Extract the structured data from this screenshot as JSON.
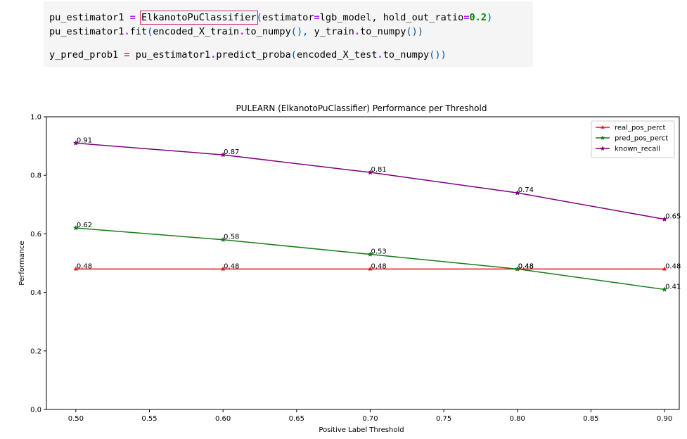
{
  "code": {
    "line1": {
      "var": "pu_estimator1",
      "eq": "=",
      "cls": "ElkanotoPuClassifier",
      "open": "(",
      "arg1": "estimator",
      "eq2": "=",
      "arg1v": "lgb_model,",
      "arg2": " hold_out_ratio",
      "eq3": "=",
      "num": "0.2",
      "close": ")"
    },
    "line2": {
      "var": "pu_estimator1",
      "dot": ".",
      "fn": "fit",
      "open": "(",
      "a": "encoded_X_train",
      "dot2": ".",
      "b": "to_numpy",
      "p1": "(),",
      "c": " y_train",
      "dot3": ".",
      "d": "to_numpy",
      "p2": "())"
    },
    "line3": {
      "var": "y_pred_prob1",
      "eq": "=",
      "a": "pu_estimator1",
      "dot": ".",
      "fn": "predict_proba",
      "open": "(",
      "b": "encoded_X_test",
      "dot2": ".",
      "c": "to_numpy",
      "close": "())"
    }
  },
  "chart_data": {
    "type": "line",
    "title": "PULEARN (ElkanotoPuClassifier) Performance per Threshold",
    "xlabel": "Positive Label Threshold",
    "ylabel": "Performance",
    "xlim": [
      0.48,
      0.91
    ],
    "ylim": [
      0.0,
      1.0
    ],
    "x": [
      0.5,
      0.6,
      0.7,
      0.8,
      0.9
    ],
    "xticks": [
      "0.50",
      "0.55",
      "0.60",
      "0.65",
      "0.70",
      "0.75",
      "0.80",
      "0.85",
      "0.90"
    ],
    "xtick_values": [
      0.5,
      0.55,
      0.6,
      0.65,
      0.7,
      0.75,
      0.8,
      0.85,
      0.9
    ],
    "yticks": [
      "0.0",
      "0.2",
      "0.4",
      "0.6",
      "0.8",
      "1.0"
    ],
    "ytick_values": [
      0.0,
      0.2,
      0.4,
      0.6,
      0.8,
      1.0
    ],
    "grid": false,
    "legend_position": "top-right",
    "series": [
      {
        "name": "real_pos_perct",
        "color": "#e8141b",
        "values": [
          0.48,
          0.48,
          0.48,
          0.48,
          0.48
        ],
        "labels": [
          "0.48",
          "0.48",
          "0.48",
          "0.48",
          "0.48"
        ]
      },
      {
        "name": "pred_pos_perct",
        "color": "#1a7a1a",
        "values": [
          0.62,
          0.58,
          0.53,
          0.48,
          0.41
        ],
        "labels": [
          "0.62",
          "0.58",
          "0.53",
          "0.48",
          "0.41"
        ]
      },
      {
        "name": "known_recall",
        "color": "#800080",
        "values": [
          0.91,
          0.87,
          0.81,
          0.74,
          0.65
        ],
        "labels": [
          "0.91",
          "0.87",
          "0.81",
          "0.74",
          "0.65"
        ]
      }
    ]
  }
}
